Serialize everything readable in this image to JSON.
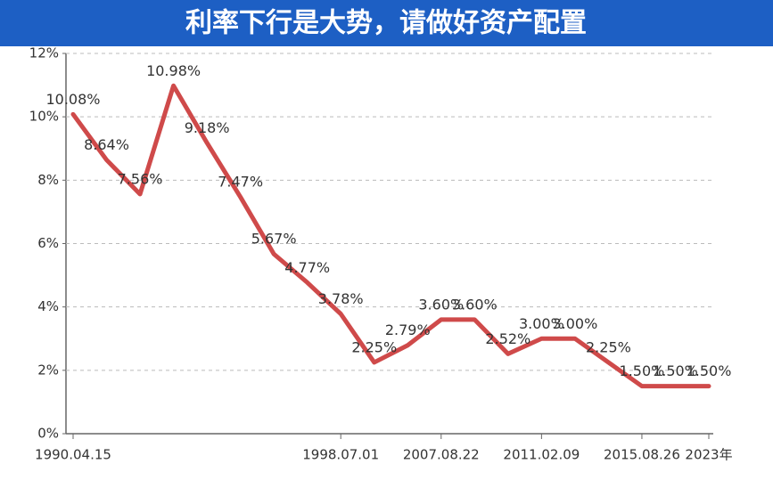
{
  "chart_data": {
    "type": "line",
    "title": "利率下行是大势，请做好资产配置",
    "categories": [
      "1990.04.15",
      null,
      null,
      null,
      null,
      null,
      null,
      null,
      "1998.07.01",
      null,
      null,
      "2007.08.22",
      null,
      null,
      "2011.02.09",
      null,
      null,
      "2015.08.26",
      null,
      "2023年"
    ],
    "series": [
      {
        "name": "利率",
        "color": "#cf4a4a",
        "values": [
          10.08,
          8.64,
          7.56,
          10.98,
          9.18,
          7.47,
          5.67,
          4.77,
          3.78,
          2.25,
          2.79,
          3.6,
          3.6,
          2.52,
          3.0,
          3.0,
          2.25,
          1.5,
          1.5,
          1.5
        ],
        "value_labels": [
          "10.08%",
          "8.64%",
          "7.56%",
          "10.98%",
          "9.18%",
          "7.47%",
          "5.67%",
          "4.77%",
          "3.78%",
          "2.25%",
          "2.79%",
          "3.60%",
          "3.60%",
          "2.52%",
          "3.00%",
          "3.00%",
          "2.25%",
          "1.50%",
          "1.50%",
          "1.50%"
        ]
      }
    ],
    "ylim": [
      0,
      12
    ],
    "yticks": [
      {
        "value": 0,
        "label": "0%"
      },
      {
        "value": 2,
        "label": "2%"
      },
      {
        "value": 4,
        "label": "4%"
      },
      {
        "value": 6,
        "label": "6%"
      },
      {
        "value": 8,
        "label": "8%"
      },
      {
        "value": 10,
        "label": "10%"
      },
      {
        "value": 12,
        "label": "12%"
      }
    ],
    "grid": true
  }
}
